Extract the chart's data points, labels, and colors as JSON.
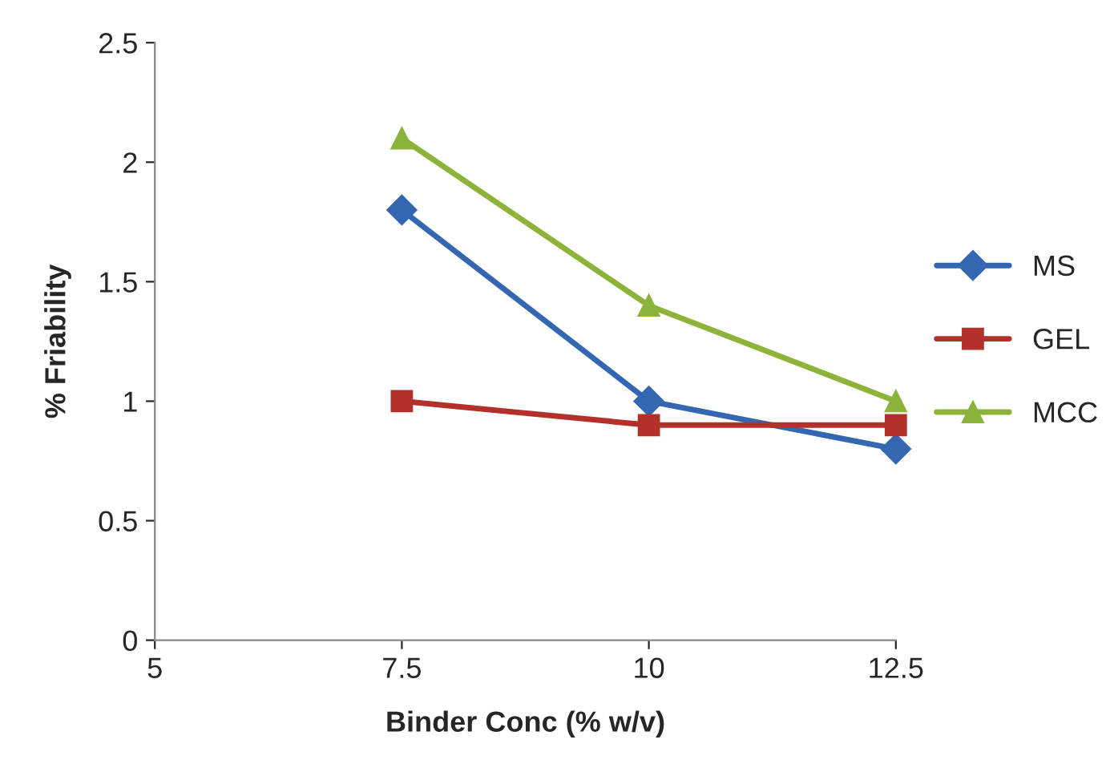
{
  "chart_data": {
    "type": "line",
    "xlabel": "Binder Conc (% w/v)",
    "ylabel": "% Friability",
    "x": [
      7.5,
      10,
      12.5
    ],
    "series": [
      {
        "name": "MS",
        "color": "#3466b2",
        "values": [
          1.8,
          1.0,
          0.8
        ],
        "marker": "diamond"
      },
      {
        "name": "GEL",
        "color": "#b3302b",
        "values": [
          1.0,
          0.9,
          0.9
        ],
        "marker": "square"
      },
      {
        "name": "MCC",
        "color": "#8db33a",
        "values": [
          2.1,
          1.4,
          1.0
        ],
        "marker": "triangle"
      }
    ],
    "xlim": [
      5,
      12.5
    ],
    "xticks": [
      5,
      7.5,
      10,
      12.5
    ],
    "ylim": [
      0,
      2.5
    ],
    "yticks": [
      0,
      0.5,
      1,
      1.5,
      2,
      2.5
    ],
    "grid": false,
    "legend": "right",
    "line_style": "solid"
  }
}
